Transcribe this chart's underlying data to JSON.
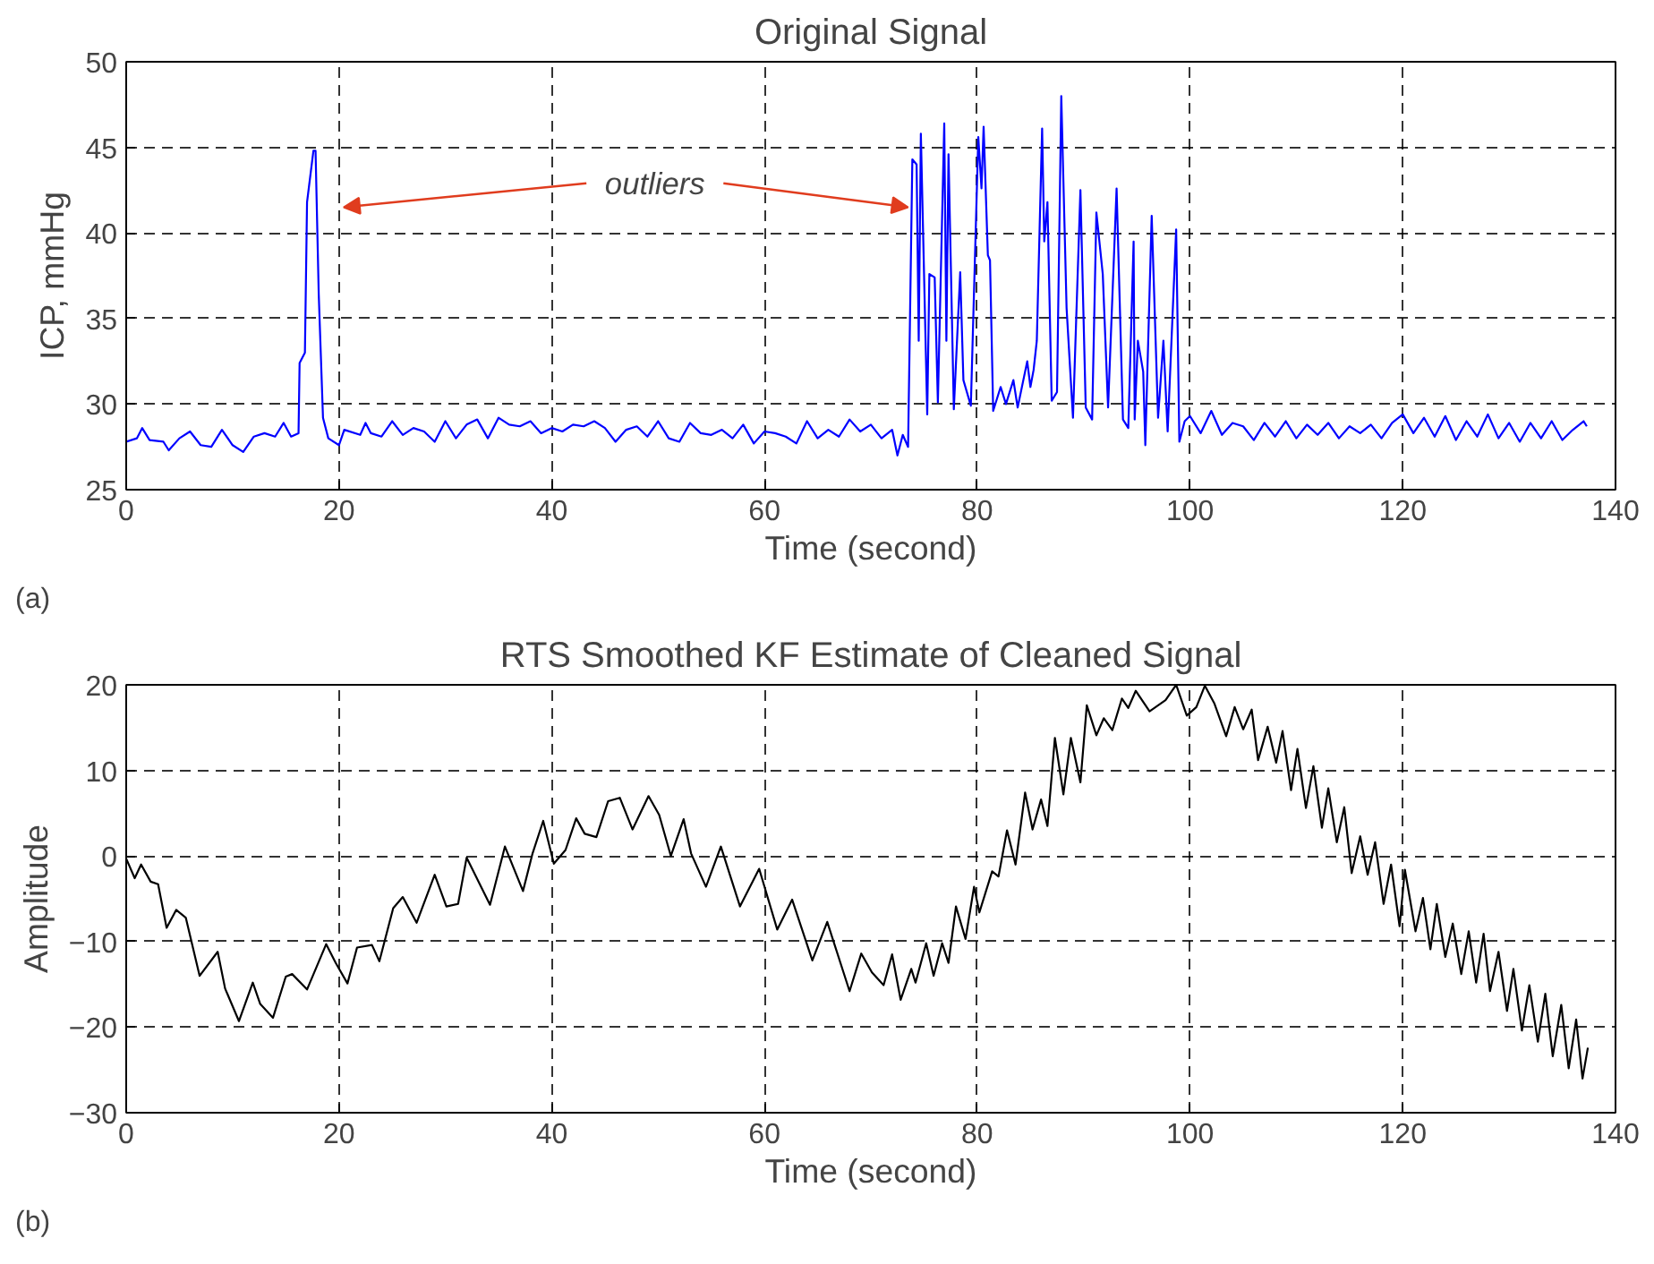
{
  "chart_data": [
    {
      "type": "line",
      "title": "Original Signal",
      "xlabel": "Time (second)",
      "ylabel": "ICP, mmHg",
      "annotations": [
        {
          "text": "outliers",
          "x": 73.5,
          "y": 41.5
        },
        "(a)"
      ],
      "xlim": [
        0,
        140
      ],
      "ylim": [
        25,
        50
      ],
      "xticks": [
        0,
        20,
        40,
        60,
        80,
        100,
        120,
        140
      ],
      "yticks": [
        25,
        30,
        35,
        40,
        45,
        50
      ],
      "grid": true,
      "line_style": "solid",
      "marker": "none",
      "series": [
        {
          "color": "#0000ff",
          "x": [
            0,
            1,
            1.5,
            2.2,
            3.5,
            4,
            5,
            6,
            7,
            8,
            9,
            10,
            11,
            12,
            13,
            14,
            14.8,
            15.5,
            16.2,
            16.3,
            16.8,
            17.0,
            17.6,
            17.8,
            18.1,
            18.5,
            19,
            20,
            20.5,
            22,
            22.5,
            23,
            24,
            25,
            26,
            27,
            28,
            29,
            30,
            31,
            32,
            33,
            34,
            35,
            36,
            37,
            38,
            39,
            40,
            41,
            42,
            43,
            44,
            45,
            46,
            47,
            48,
            49,
            50,
            51,
            52,
            53,
            54,
            55,
            56,
            57,
            58,
            59,
            60,
            61,
            62,
            63,
            64,
            65,
            66,
            67,
            68,
            69,
            70,
            71,
            72,
            72.5,
            73,
            73.5,
            73.9,
            74.3,
            74.5,
            74.7,
            75.3,
            75.5,
            76,
            76.3,
            76.9,
            77.1,
            77.3,
            77.8,
            78.4,
            78.7,
            79.4,
            80.1,
            80.4,
            80.6,
            81,
            81.2,
            81.5,
            82.2,
            82.7,
            83.4,
            83.8,
            84.7,
            85,
            85.3,
            85.6,
            86.1,
            86.3,
            86.6,
            87,
            87.5,
            87.9,
            88.4,
            89,
            89.7,
            90.2,
            90.8,
            91.2,
            91.8,
            92.3,
            93.1,
            93.7,
            94.2,
            94.7,
            94.8,
            95.1,
            95.6,
            95.8,
            96.4,
            97,
            97.5,
            97.9,
            98.7,
            99,
            99.5,
            100,
            101,
            102,
            103,
            104,
            105,
            106,
            107,
            108,
            109,
            110,
            111,
            112,
            113,
            114,
            115,
            116,
            117,
            118,
            119,
            120,
            121,
            122,
            123,
            124,
            125,
            126,
            127,
            128,
            129,
            130,
            131,
            132,
            133,
            134,
            135,
            136,
            137,
            137.3
          ],
          "values": [
            27.8,
            28.0,
            28.6,
            27.9,
            27.8,
            27.3,
            28.0,
            28.4,
            27.6,
            27.5,
            28.5,
            27.6,
            27.2,
            28.1,
            28.3,
            28.1,
            28.9,
            28.1,
            28.3,
            32.4,
            33.0,
            41.8,
            44.8,
            44.8,
            36.4,
            29.2,
            28.0,
            27.6,
            28.5,
            28.2,
            28.9,
            28.3,
            28.1,
            29.0,
            28.2,
            28.6,
            28.4,
            27.8,
            29.0,
            28.0,
            28.8,
            29.1,
            28.0,
            29.2,
            28.8,
            28.7,
            29.0,
            28.3,
            28.6,
            28.4,
            28.8,
            28.7,
            29.0,
            28.6,
            27.8,
            28.5,
            28.7,
            28.1,
            29.0,
            28.0,
            27.8,
            28.9,
            28.3,
            28.2,
            28.5,
            28.0,
            28.8,
            27.7,
            28.4,
            28.3,
            28.1,
            27.7,
            29.0,
            28.0,
            28.5,
            28.1,
            29.1,
            28.4,
            28.8,
            28.0,
            28.5,
            27.0,
            28.2,
            27.5,
            44.3,
            44.0,
            33.7,
            45.8,
            29.4,
            37.6,
            37.4,
            30.1,
            46.4,
            33.7,
            44.6,
            29.7,
            37.7,
            31.4,
            29.9,
            45.6,
            42.6,
            46.2,
            38.7,
            38.4,
            29.6,
            31.0,
            30.0,
            31.4,
            29.8,
            32.5,
            31.0,
            32.0,
            33.7,
            46.1,
            39.5,
            41.8,
            30.2,
            30.7,
            48.0,
            35.6,
            29.2,
            42.5,
            29.8,
            29.1,
            41.2,
            37.6,
            29.8,
            42.6,
            29.1,
            28.6,
            39.5,
            29.1,
            33.7,
            31.9,
            27.6,
            41.0,
            29.2,
            33.7,
            28.4,
            40.2,
            27.8,
            29.0,
            29.3,
            28.3,
            29.6,
            28.2,
            28.9,
            28.7,
            27.9,
            28.9,
            28.1,
            29.0,
            28.0,
            28.8,
            28.2,
            28.9,
            28.0,
            28.7,
            28.3,
            28.8,
            28.0,
            28.9,
            29.4,
            28.3,
            29.2,
            28.1,
            29.3,
            27.9,
            29.0,
            28.1,
            29.4,
            28.0,
            28.9,
            27.8,
            28.9,
            28.0,
            29.0,
            27.9,
            28.5,
            29.0,
            28.7
          ]
        }
      ]
    },
    {
      "type": "line",
      "title": "RTS Smoothed KF Estimate of Cleaned Signal",
      "xlabel": "Time (second)",
      "ylabel": "Amplitude",
      "annotations": [
        "(b)"
      ],
      "xlim": [
        0,
        140
      ],
      "ylim": [
        -30,
        20
      ],
      "xticks": [
        0,
        20,
        40,
        60,
        80,
        100,
        120,
        140
      ],
      "yticks": [
        -30,
        -20,
        -10,
        0,
        10,
        20
      ],
      "grid": true,
      "line_style": "solid",
      "marker": "none",
      "series": [
        {
          "color": "#000000",
          "x": [
            0,
            0.8,
            1.4,
            2.3,
            3,
            3.8,
            4.7,
            5.6,
            6.9,
            8.6,
            9.3,
            10.6,
            11.9,
            12.6,
            13.8,
            15.0,
            15.6,
            17,
            18.8,
            19.7,
            20.8,
            21.7,
            23.1,
            23.8,
            25.1,
            26,
            27.3,
            29,
            30.1,
            31.2,
            32,
            34.2,
            35.6,
            37.3,
            38.2,
            39.2,
            40.2,
            41.3,
            42.3,
            43.1,
            44.2,
            45.3,
            46.4,
            47.6,
            49.1,
            50.1,
            51.2,
            52.4,
            53.1,
            54.5,
            55.9,
            57.7,
            59.5,
            61.2,
            62.6,
            64.5,
            65.9,
            68,
            69.1,
            70.1,
            71.2,
            72,
            72.8,
            73.8,
            74.2,
            75.2,
            75.9,
            76.7,
            77.3,
            78,
            78.9,
            79.7,
            80.2,
            81.4,
            82,
            82.8,
            83.6,
            84.5,
            85.2,
            86,
            86.6,
            87.3,
            88.1,
            88.8,
            89.7,
            90.3,
            91.2,
            91.9,
            92.7,
            93.6,
            94.2,
            94.9,
            96.2,
            97.7,
            98.7,
            99.7,
            100.6,
            101.4,
            102.3,
            103.4,
            104.2,
            105,
            105.8,
            106.4,
            107.3,
            108.1,
            108.7,
            109.5,
            110.1,
            110.9,
            111.6,
            112.4,
            113,
            113.8,
            114.5,
            115.2,
            116,
            116.7,
            117.4,
            118.2,
            118.9,
            119.7,
            120.2,
            121.2,
            121.9,
            122.6,
            123.2,
            124,
            124.7,
            125.5,
            126.2,
            126.9,
            127.6,
            128.2,
            129,
            129.8,
            130.4,
            131.2,
            131.9,
            132.7,
            133.4,
            134.1,
            134.9,
            135.6,
            136.3,
            136.9,
            137.4
          ],
          "values": [
            -0.3,
            -2.6,
            -1,
            -3,
            -3.3,
            -8.4,
            -6.3,
            -7.2,
            -14,
            -11.2,
            -15.5,
            -19.3,
            -14.8,
            -17.3,
            -18.9,
            -14.1,
            -13.8,
            -15.6,
            -10.3,
            -12.5,
            -14.9,
            -10.7,
            -10.4,
            -12.3,
            -6.1,
            -4.8,
            -7.8,
            -2.2,
            -5.9,
            -5.6,
            -0.2,
            -5.7,
            1.1,
            -4.1,
            0.3,
            4.1,
            -0.9,
            0.7,
            4.4,
            2.6,
            2.2,
            6.4,
            6.8,
            3.1,
            7.0,
            4.8,
            0,
            4.3,
            0.3,
            -3.6,
            1.1,
            -5.9,
            -1.5,
            -8.6,
            -5.1,
            -12.2,
            -7.7,
            -15.8,
            -11.4,
            -13.6,
            -15.1,
            -11.5,
            -16.8,
            -13.2,
            -14.8,
            -10.2,
            -14.0,
            -10.2,
            -12.5,
            -5.9,
            -9.7,
            -3.6,
            -6.6,
            -1.8,
            -2.4,
            3.0,
            -1,
            7.4,
            3.1,
            6.6,
            3.5,
            13.8,
            7.2,
            13.8,
            8.6,
            17.6,
            14.1,
            16.1,
            14.7,
            18.4,
            17.3,
            19.3,
            16.9,
            18.2,
            20.0,
            16.4,
            17.4,
            19.9,
            17.8,
            14.0,
            17.4,
            14.8,
            17.1,
            11.2,
            15.1,
            10.9,
            14.6,
            7.7,
            12.5,
            5.6,
            10.5,
            3.3,
            7.9,
            1.6,
            5.7,
            -2.0,
            2.3,
            -2.2,
            1.6,
            -5.6,
            -1.0,
            -8.2,
            -1.6,
            -8.8,
            -4.9,
            -10.9,
            -5.6,
            -11.8,
            -7.9,
            -13.8,
            -8.8,
            -14.8,
            -9.1,
            -15.8,
            -11.2,
            -18.1,
            -13.2,
            -20.4,
            -15.1,
            -21.7,
            -16.1,
            -23.4,
            -17.4,
            -24.8,
            -19.1,
            -26.0,
            -22.4
          ]
        }
      ]
    }
  ]
}
